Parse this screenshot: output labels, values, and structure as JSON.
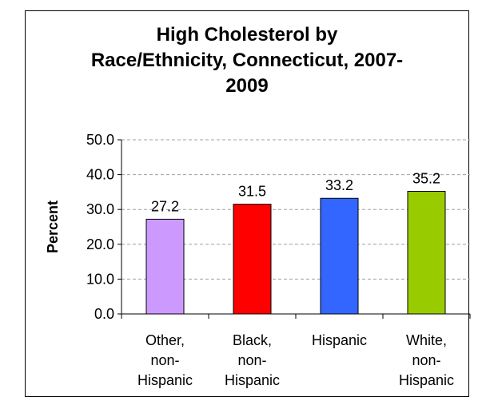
{
  "chart_data": {
    "type": "bar",
    "title_lines": [
      "High Cholesterol by",
      "Race/Ethnicity, Connecticut, 2007-",
      "2009"
    ],
    "ylabel": "Percent",
    "ylim": [
      0,
      50
    ],
    "yticks": [
      "0.0",
      "10.0",
      "20.0",
      "30.0",
      "40.0",
      "50.0"
    ],
    "grid": true,
    "categories": [
      [
        "Other,",
        "non-",
        "Hispanic"
      ],
      [
        "Black,",
        "non-",
        "Hispanic"
      ],
      [
        "Hispanic"
      ],
      [
        "White,",
        "non-",
        "Hispanic"
      ]
    ],
    "values": [
      27.2,
      31.5,
      33.2,
      35.2
    ],
    "value_labels": [
      "27.2",
      "31.5",
      "33.2",
      "35.2"
    ],
    "colors": [
      "#cc99ff",
      "#ff0000",
      "#3366ff",
      "#99cc00"
    ]
  }
}
